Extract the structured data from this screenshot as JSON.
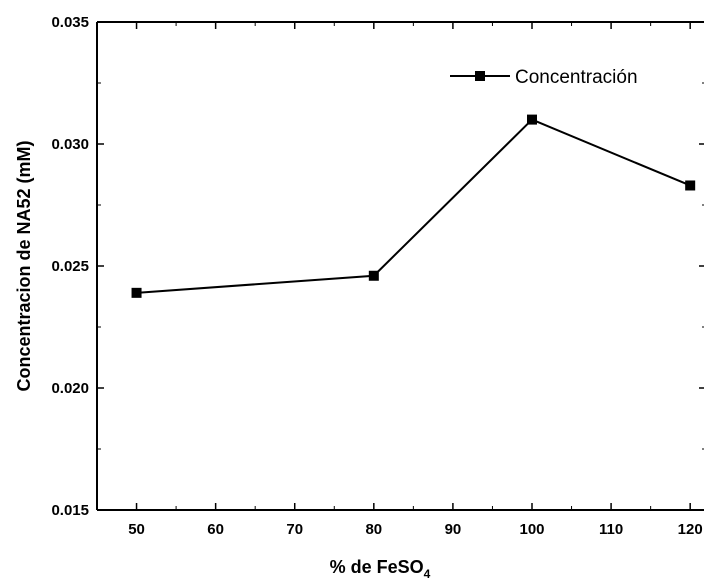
{
  "chart_data": {
    "type": "line",
    "title": "",
    "xlabel": "% de FeSO",
    "xlabel_subscript": "4",
    "ylabel": "Concentracion de NA52 (mM)",
    "xlim": [
      45,
      122
    ],
    "ylim": [
      0.015,
      0.035
    ],
    "xticks": [
      50,
      60,
      70,
      80,
      90,
      100,
      110,
      120
    ],
    "yticks": [
      0.015,
      0.02,
      0.025,
      0.03,
      0.035
    ],
    "xtick_labels": [
      "50",
      "60",
      "70",
      "80",
      "90",
      "100",
      "110",
      "120"
    ],
    "ytick_labels": [
      "0.015",
      "0.020",
      "0.025",
      "0.030",
      "0.035"
    ],
    "grid": false,
    "legend_position": "top-right",
    "series": [
      {
        "name": "Concentración",
        "color": "#000000",
        "marker": "square",
        "x": [
          50,
          80,
          100,
          120
        ],
        "y": [
          0.0239,
          0.0246,
          0.031,
          0.0283
        ]
      }
    ]
  }
}
